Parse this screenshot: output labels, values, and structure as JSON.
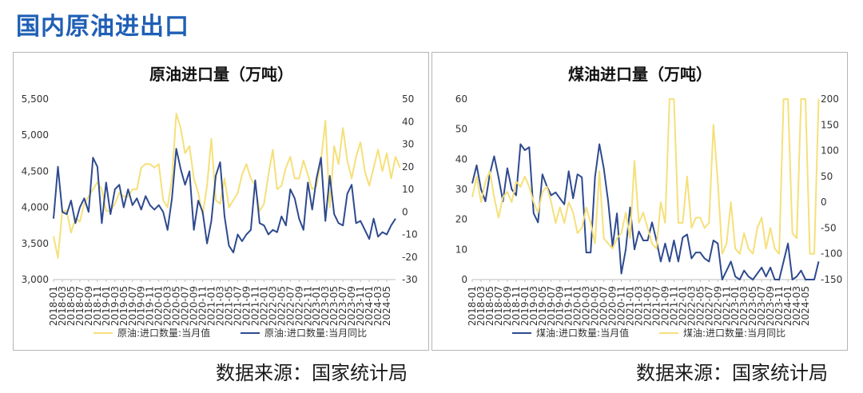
{
  "page": {
    "title": "国内原油进出口",
    "source_left": "数据来源：国家统计局",
    "source_right": "数据来源：国家统计局"
  },
  "colors": {
    "title": "#1f5fb5",
    "dark_blue": "#2e4a8f",
    "light_yellow": "#f5e07a"
  },
  "chart_data": [
    {
      "type": "line",
      "title": "原油进口量（万吨）",
      "x_ticks": [
        "2018-01",
        "2018-03",
        "2018-05",
        "2018-07",
        "2018-09",
        "2018-11",
        "2019-01",
        "2019-03",
        "2019-05",
        "2019-07",
        "2019-09",
        "2019-11",
        "2020-01",
        "2020-03",
        "2020-05",
        "2020-07",
        "2020-09",
        "2020-11",
        "2021-01",
        "2021-03",
        "2021-05",
        "2021-07",
        "2021-09",
        "2021-11",
        "2022-01",
        "2022-03",
        "2022-05",
        "2022-07",
        "2022-09",
        "2022-11",
        "2023-01",
        "2023-03",
        "2023-05",
        "2023-07",
        "2023-09",
        "2023-11",
        "2024-01",
        "2024-03",
        "2024-05"
      ],
      "x_start": "2018-01",
      "x_end": "2024-07",
      "y_left": {
        "min": 3000,
        "max": 5500,
        "ticks": [
          "3,000",
          "3,500",
          "4,000",
          "4,500",
          "5,000",
          "5,500"
        ]
      },
      "y_right": {
        "min": -30,
        "max": 50,
        "ticks": [
          "-30",
          "-20",
          "-10",
          "0",
          "10",
          "20",
          "30",
          "40",
          "50"
        ]
      },
      "series": [
        {
          "name": "原油:进口数量:当月值",
          "axis": "left",
          "color": "#f5e07a",
          "values": [
            3600,
            3300,
            3950,
            3950,
            3650,
            3850,
            3800,
            4050,
            4150,
            4250,
            4350,
            4250,
            3950,
            3950,
            4050,
            4200,
            4150,
            4150,
            4250,
            4250,
            4550,
            4600,
            4600,
            4550,
            4600,
            4100,
            4000,
            4400,
            5300,
            5100,
            4750,
            4850,
            4400,
            4200,
            3900,
            4300,
            4950,
            4100,
            4050,
            4400,
            4000,
            4100,
            4200,
            4450,
            4600,
            4400,
            4300,
            3950,
            4050,
            4450,
            4800,
            4250,
            4300,
            4550,
            4700,
            4400,
            4400,
            4650,
            4450,
            4250,
            4300,
            4650,
            5200,
            4000,
            4850,
            4600,
            5100,
            4650,
            4400,
            4700,
            4900,
            4500,
            4300,
            4550,
            4800,
            4500,
            4750,
            4400,
            4700,
            4550
          ]
        },
        {
          "name": "原油:进口数量:当月同比",
          "axis": "right",
          "color": "#2e4a8f",
          "values": [
            -3,
            20,
            0,
            -1,
            5,
            -5,
            2,
            6,
            0,
            24,
            20,
            -5,
            13,
            -1,
            10,
            12,
            2,
            10,
            3,
            6,
            1,
            7,
            3,
            1,
            3,
            0,
            -8,
            6,
            28,
            19,
            12,
            18,
            -8,
            5,
            0,
            -14,
            -4,
            16,
            22,
            -2,
            -15,
            -18,
            -10,
            -13,
            -10,
            -8,
            14,
            -5,
            -6,
            -10,
            -8,
            -9,
            -2,
            -6,
            10,
            6,
            -3,
            -8,
            13,
            1,
            15,
            24,
            -4,
            16,
            -1,
            -5,
            -6,
            8,
            12,
            -5,
            -4,
            -8,
            -12,
            -3,
            -11,
            -9,
            -10,
            -6,
            -3
          ]
        }
      ]
    },
    {
      "type": "line",
      "title": "煤油进口量（万吨）",
      "x_ticks": [
        "2018-01",
        "2018-03",
        "2018-05",
        "2018-07",
        "2018-09",
        "2018-11",
        "2019-01",
        "2019-03",
        "2019-05",
        "2019-07",
        "2019-09",
        "2019-11",
        "2020-01",
        "2020-03",
        "2020-05",
        "2020-07",
        "2020-09",
        "2020-11",
        "2021-01",
        "2021-03",
        "2021-05",
        "2021-07",
        "2021-09",
        "2021-11",
        "2022-01",
        "2022-03",
        "2022-05",
        "2022-07",
        "2022-09",
        "2022-11",
        "2023-01",
        "2023-03",
        "2023-05",
        "2023-07",
        "2023-09",
        "2023-11",
        "2024-01",
        "2024-03",
        "2024-05"
      ],
      "x_start": "2018-01",
      "x_end": "2024-07",
      "y_left": {
        "min": 0,
        "max": 60,
        "ticks": [
          "0",
          "10",
          "20",
          "30",
          "40",
          "50",
          "60"
        ]
      },
      "y_right": {
        "min": -150,
        "max": 200,
        "ticks": [
          "-150",
          "-100",
          "-50",
          "0",
          "50",
          "100",
          "150",
          "200"
        ]
      },
      "series": [
        {
          "name": "煤油:进口数量:当月值",
          "axis": "left",
          "color": "#2e4a8f",
          "values": [
            32,
            38,
            30,
            26,
            35,
            41,
            34,
            26,
            37,
            30,
            28,
            45,
            43,
            44,
            22,
            19,
            35,
            31,
            28,
            29,
            27,
            25,
            36,
            27,
            35,
            34,
            9,
            9,
            34,
            45,
            37,
            26,
            11,
            22,
            2,
            10,
            24,
            10,
            16,
            13,
            13,
            19,
            13,
            6,
            12,
            6,
            13,
            6,
            14,
            15,
            7,
            9,
            9,
            7,
            6,
            13,
            12,
            0,
            3,
            6,
            1,
            0,
            3,
            1,
            0,
            2,
            4,
            1,
            4,
            0,
            0,
            6,
            12,
            0,
            1,
            3,
            0,
            0,
            0,
            6
          ]
        },
        {
          "name": "煤油:进口数量:当月同比",
          "axis": "right",
          "color": "#f5e07a",
          "values": [
            10,
            50,
            0,
            40,
            60,
            10,
            -30,
            10,
            20,
            0,
            40,
            30,
            50,
            30,
            0,
            -20,
            20,
            30,
            0,
            -40,
            -10,
            -40,
            0,
            -20,
            -60,
            -50,
            -10,
            -40,
            -80,
            60,
            -70,
            -80,
            -90,
            -70,
            -60,
            -20,
            -70,
            80,
            -40,
            -20,
            -50,
            -80,
            -90,
            0,
            -40,
            200,
            200,
            -40,
            -40,
            50,
            -50,
            -30,
            -30,
            -50,
            -40,
            150,
            40,
            -100,
            -80,
            0,
            -90,
            -100,
            -60,
            -90,
            -100,
            -50,
            -30,
            -90,
            -50,
            -90,
            -100,
            200,
            200,
            -60,
            -70,
            200,
            200,
            -100,
            -100,
            200
          ]
        }
      ]
    }
  ]
}
